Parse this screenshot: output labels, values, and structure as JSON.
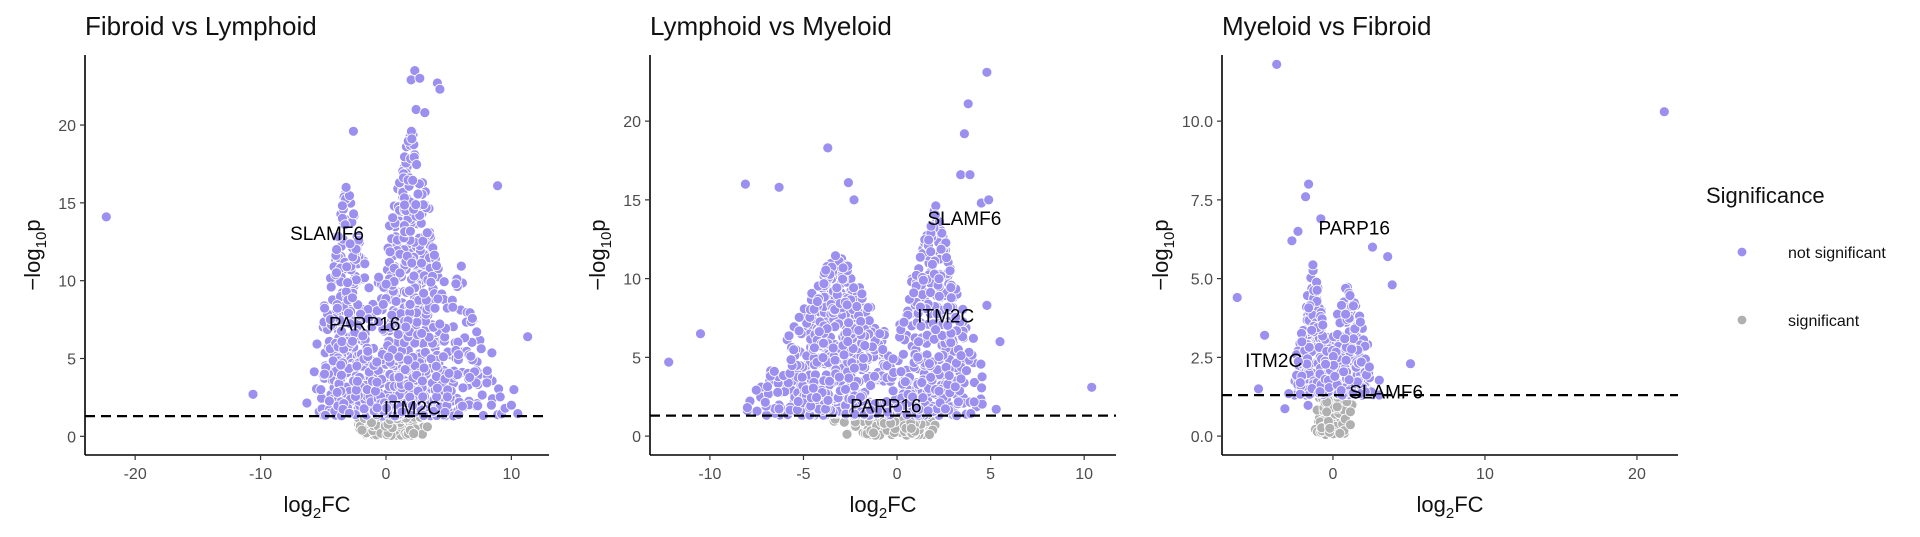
{
  "legend": {
    "title": "Significance",
    "entries": [
      {
        "label": "not significant",
        "color": "#9b8ff0"
      },
      {
        "label": "significant",
        "color": "#b0b0b0"
      }
    ]
  },
  "chart_data": [
    {
      "type": "scatter",
      "title": "Fibroid vs Lymphoid",
      "xlabel": "log2FC",
      "ylabel": "-log10p",
      "xlim": [
        -24,
        13
      ],
      "ylim": [
        -1.2,
        24.5
      ],
      "xticks": [
        -20,
        -10,
        0,
        10
      ],
      "yticks": [
        0,
        5,
        10,
        15,
        20
      ],
      "ytick_labels": [
        "0",
        "5",
        "10",
        "15",
        "20"
      ],
      "threshold": 1.3,
      "grid": false,
      "cloud": {
        "seed": 11,
        "clusters": [
          {
            "cx": -3.0,
            "sx": 1.1,
            "n": 330,
            "ymax": 17
          },
          {
            "cx": 2.0,
            "sx": 1.5,
            "n": 560,
            "ymax": 20
          },
          {
            "cx": 6.0,
            "sx": 1.4,
            "n": 90,
            "ymax": 11
          }
        ]
      },
      "outliers": [
        {
          "x": -22.3,
          "y": 14.1
        },
        {
          "x": -10.6,
          "y": 2.7
        },
        {
          "x": 8.9,
          "y": 16.1
        },
        {
          "x": 11.3,
          "y": 6.4
        },
        {
          "x": 10.2,
          "y": 3.0
        },
        {
          "x": 10.0,
          "y": 2.0
        },
        {
          "x": 2.3,
          "y": 23.5
        },
        {
          "x": 2.0,
          "y": 22.9
        },
        {
          "x": 2.7,
          "y": 23.0
        },
        {
          "x": 4.1,
          "y": 22.7
        },
        {
          "x": 4.3,
          "y": 22.3
        },
        {
          "x": -2.6,
          "y": 19.6
        },
        {
          "x": 2.4,
          "y": 21.0
        },
        {
          "x": 3.1,
          "y": 20.8
        },
        {
          "x": -4.9,
          "y": 4.0
        },
        {
          "x": -5.2,
          "y": 3.0
        }
      ],
      "labels": [
        {
          "gene": "SLAMF6",
          "x": -4.7,
          "y": 12.6
        },
        {
          "gene": "PARP16",
          "x": -1.7,
          "y": 6.8
        },
        {
          "gene": "ITM2C",
          "x": 2.1,
          "y": 1.4
        }
      ]
    },
    {
      "type": "scatter",
      "title": "Lymphoid vs Myeloid",
      "xlabel": "log2FC",
      "ylabel": "-log10p",
      "xlim": [
        -13.2,
        11.7
      ],
      "ylim": [
        -1.2,
        24.2
      ],
      "xticks": [
        -10,
        -5,
        0,
        5,
        10
      ],
      "yticks": [
        0,
        5,
        10,
        15,
        20
      ],
      "ytick_labels": [
        "0",
        "5",
        "10",
        "15",
        "20"
      ],
      "threshold": 1.3,
      "grid": false,
      "cloud": {
        "seed": 23,
        "clusters": [
          {
            "cx": -3.2,
            "sx": 1.6,
            "n": 620,
            "ymax": 12
          },
          {
            "cx": 2.0,
            "sx": 1.0,
            "n": 380,
            "ymax": 15
          }
        ]
      },
      "outliers": [
        {
          "x": -12.2,
          "y": 4.7
        },
        {
          "x": -10.5,
          "y": 6.5
        },
        {
          "x": -8.1,
          "y": 16.0
        },
        {
          "x": -6.3,
          "y": 15.8
        },
        {
          "x": -3.7,
          "y": 18.3
        },
        {
          "x": -2.6,
          "y": 16.1
        },
        {
          "x": -2.3,
          "y": 15.0
        },
        {
          "x": 4.8,
          "y": 23.1
        },
        {
          "x": 3.8,
          "y": 21.1
        },
        {
          "x": 3.6,
          "y": 19.2
        },
        {
          "x": 3.4,
          "y": 16.6
        },
        {
          "x": 3.9,
          "y": 16.6
        },
        {
          "x": 4.5,
          "y": 14.8
        },
        {
          "x": 4.9,
          "y": 15.0
        },
        {
          "x": 10.4,
          "y": 3.1
        },
        {
          "x": 5.5,
          "y": 6.0
        },
        {
          "x": 5.3,
          "y": 1.7
        },
        {
          "x": 4.8,
          "y": 8.3
        }
      ],
      "labels": [
        {
          "gene": "SLAMF6",
          "x": 3.6,
          "y": 13.4
        },
        {
          "gene": "ITM2C",
          "x": 2.6,
          "y": 7.2
        },
        {
          "gene": "PARP16",
          "x": -0.6,
          "y": 1.5
        }
      ]
    },
    {
      "type": "scatter",
      "title": "Myeloid vs Fibroid",
      "xlabel": "log2FC",
      "ylabel": "-log10p",
      "xlim": [
        -7.3,
        22.7
      ],
      "ylim": [
        -0.6,
        12.1
      ],
      "xticks": [
        0,
        10,
        20
      ],
      "yticks": [
        0,
        2.5,
        5,
        7.5,
        10
      ],
      "ytick_labels": [
        "0.0",
        "2.5",
        "5.0",
        "7.5",
        "10.0"
      ],
      "threshold": 1.3,
      "grid": false,
      "cloud": {
        "seed": 37,
        "clusters": [
          {
            "cx": -1.3,
            "sx": 0.6,
            "n": 230,
            "ymax": 5.5
          },
          {
            "cx": 1.0,
            "sx": 0.9,
            "n": 200,
            "ymax": 5.0
          }
        ]
      },
      "outliers": [
        {
          "x": -3.7,
          "y": 11.8
        },
        {
          "x": 21.8,
          "y": 10.3
        },
        {
          "x": -1.6,
          "y": 8.0
        },
        {
          "x": -1.8,
          "y": 7.6
        },
        {
          "x": -2.3,
          "y": 6.5
        },
        {
          "x": -2.7,
          "y": 6.2
        },
        {
          "x": -6.3,
          "y": 4.4
        },
        {
          "x": -4.5,
          "y": 3.2
        },
        {
          "x": 3.6,
          "y": 5.7
        },
        {
          "x": 3.9,
          "y": 4.8
        },
        {
          "x": 5.1,
          "y": 2.3
        },
        {
          "x": 2.6,
          "y": 6.0
        },
        {
          "x": -0.8,
          "y": 6.9
        },
        {
          "x": -4.9,
          "y": 1.5
        }
      ],
      "labels": [
        {
          "gene": "PARP16",
          "x": 1.4,
          "y": 6.4
        },
        {
          "gene": "ITM2C",
          "x": -3.9,
          "y": 2.2
        },
        {
          "gene": "SLAMF6",
          "x": 3.5,
          "y": 1.2
        }
      ]
    }
  ]
}
